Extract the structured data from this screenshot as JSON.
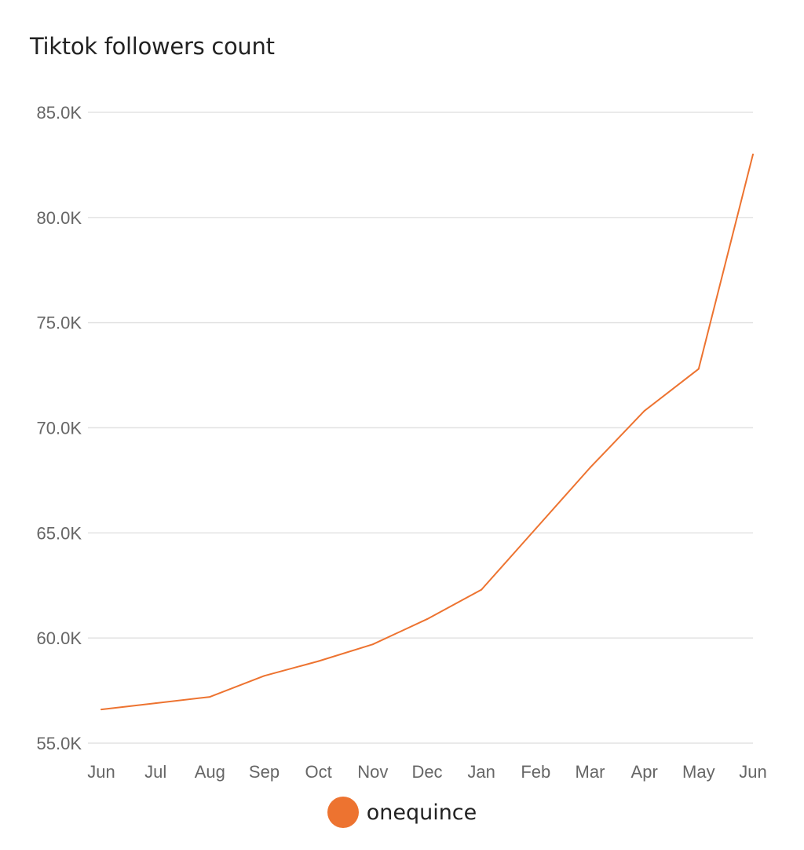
{
  "chart_data": {
    "type": "line",
    "title": "Tiktok followers count",
    "xlabel": "",
    "ylabel": "",
    "categories": [
      "Jun",
      "Jul",
      "Aug",
      "Sep",
      "Oct",
      "Nov",
      "Dec",
      "Jan",
      "Feb",
      "Mar",
      "Apr",
      "May",
      "Jun"
    ],
    "series": [
      {
        "name": "onequince",
        "color": "#ED7330",
        "values": [
          56600,
          56900,
          57200,
          58200,
          58900,
          59700,
          60900,
          62300,
          65200,
          68100,
          70800,
          72800,
          83000
        ]
      }
    ],
    "ylim": [
      55000,
      85000
    ],
    "yticks": [
      55000,
      60000,
      65000,
      70000,
      75000,
      80000,
      85000
    ],
    "ytick_labels": [
      "55.0K",
      "60.0K",
      "65.0K",
      "70.0K",
      "75.0K",
      "80.0K",
      "85.0K"
    ],
    "grid": true,
    "legend": "bottom-center"
  }
}
